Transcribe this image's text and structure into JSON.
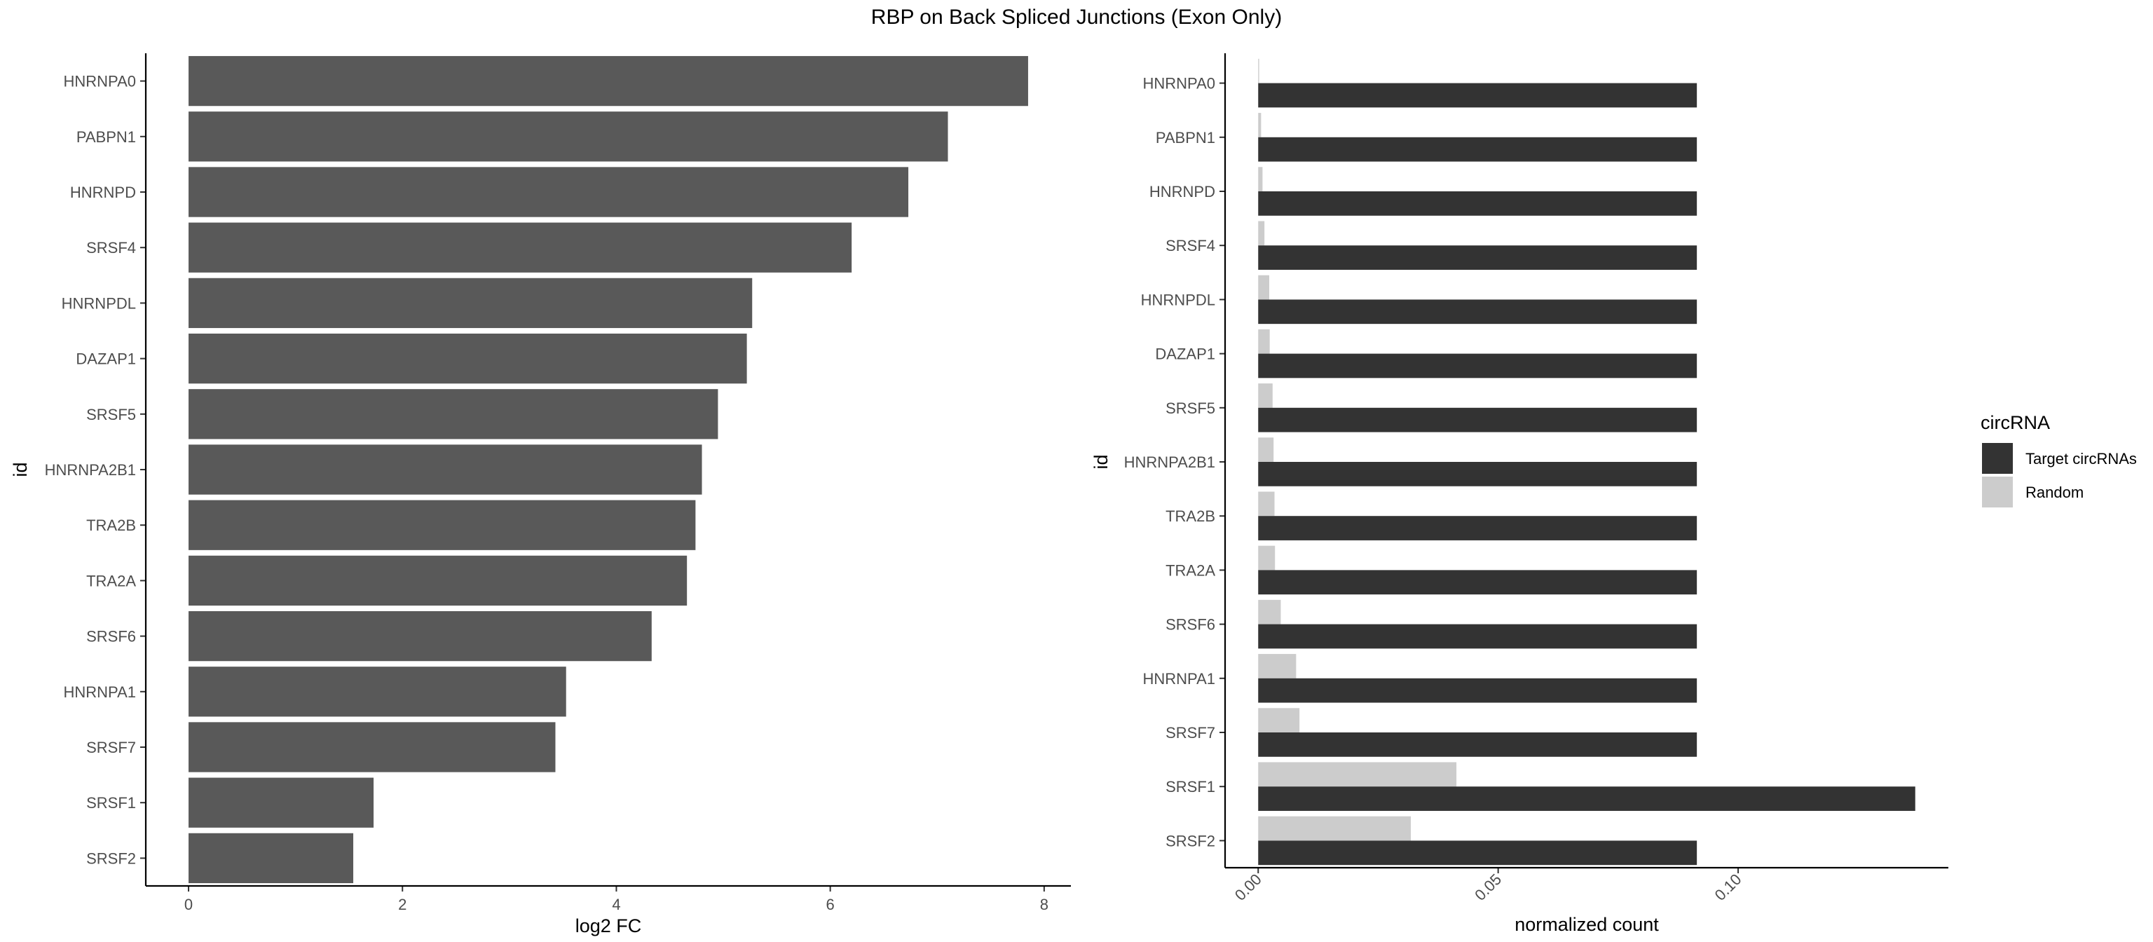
{
  "title": "RBP on Back Spliced Junctions (Exon Only)",
  "colors": {
    "left_bar": "#595959",
    "target": "#333333",
    "random": "#cccccc"
  },
  "chart_data": [
    {
      "type": "bar",
      "orientation": "horizontal",
      "categories": [
        "HNRNPA0",
        "PABPN1",
        "HNRNPD",
        "SRSF4",
        "HNRNPDL",
        "DAZAP1",
        "SRSF5",
        "HNRNPA2B1",
        "TRA2B",
        "TRA2A",
        "SRSF6",
        "HNRNPA1",
        "SRSF7",
        "SRSF1",
        "SRSF2"
      ],
      "values": [
        7.85,
        7.1,
        6.73,
        6.2,
        5.27,
        5.22,
        4.95,
        4.8,
        4.74,
        4.66,
        4.33,
        3.53,
        3.43,
        1.73,
        1.54
      ],
      "xlabel": "log2 FC",
      "ylabel": "id",
      "xticks": [
        0,
        2,
        4,
        6,
        8
      ],
      "xticklabels": [
        "0",
        "2",
        "4",
        "6",
        "8"
      ],
      "xlim": [
        -0.4,
        8.25
      ],
      "grid": false
    },
    {
      "type": "bar",
      "orientation": "horizontal",
      "grouped": true,
      "categories": [
        "HNRNPA0",
        "PABPN1",
        "HNRNPD",
        "SRSF4",
        "HNRNPDL",
        "DAZAP1",
        "SRSF5",
        "HNRNPA2B1",
        "TRA2B",
        "TRA2A",
        "SRSF6",
        "HNRNPA1",
        "SRSF7",
        "SRSF1",
        "SRSF2"
      ],
      "series": [
        {
          "name": "Target circRNAs",
          "values": [
            0.0914,
            0.0914,
            0.0914,
            0.0914,
            0.0914,
            0.0914,
            0.0914,
            0.0914,
            0.0914,
            0.0914,
            0.0914,
            0.0914,
            0.0914,
            0.1369,
            0.0914
          ]
        },
        {
          "name": "Random",
          "values": [
            0.0002,
            0.0006,
            0.0009,
            0.0013,
            0.0023,
            0.0024,
            0.003,
            0.0032,
            0.0034,
            0.0035,
            0.0047,
            0.0079,
            0.0086,
            0.0413,
            0.0318
          ]
        }
      ],
      "xlabel": "normalized count",
      "ylabel": "id",
      "xticks": [
        0,
        0.05,
        0.1
      ],
      "xticklabels": [
        "0.00",
        "0.05",
        "0.10"
      ],
      "xlim": [
        -0.0069,
        0.1438
      ],
      "legend": {
        "title": "circRNA",
        "position": "right"
      },
      "grid": false
    }
  ]
}
